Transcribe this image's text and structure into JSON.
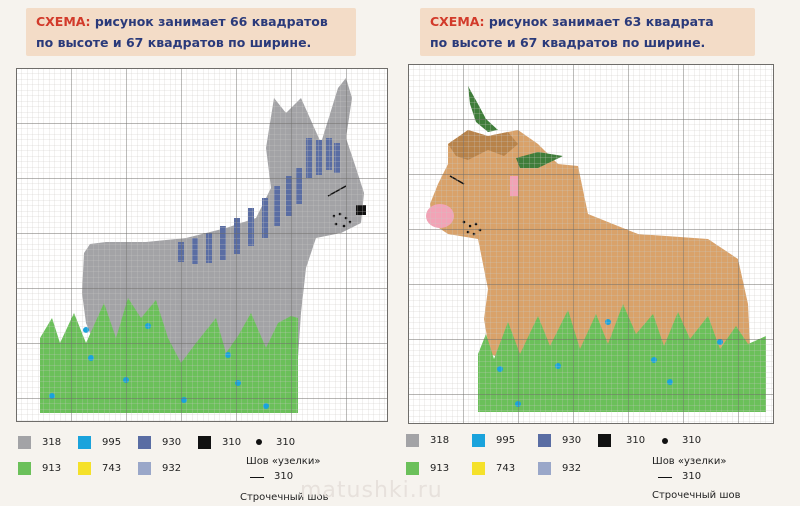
{
  "left": {
    "header": {
      "label": "СХЕМА:",
      "line1": " рисунок занимает 66 квадратов",
      "line2": "по высоте и 67 квадратов по ширине."
    },
    "legend": {
      "codes": [
        "318",
        "995",
        "930",
        "310",
        "310",
        "913",
        "743",
        "932"
      ],
      "french_knot_label": "Шов «узелки»",
      "backstitch_code": "310",
      "backstitch_label": "Строчечный шов"
    }
  },
  "right": {
    "header": {
      "label": "СХЕМА:",
      "line1": " рисунок занимает 63 квадрата",
      "line2": "по высоте и 67 квадратов по ширине."
    },
    "legend": {
      "codes": [
        "318",
        "995",
        "930",
        "310",
        "310",
        "913",
        "743",
        "932"
      ],
      "french_knot_label": "Шов «узелки»",
      "backstitch_code": "310",
      "backstitch_label": "Строчечный шов"
    }
  },
  "watermark": "matushki.ru",
  "colors": {
    "c318": "#a3a3a6",
    "c995": "#1aa3dc",
    "c930": "#5a6da3",
    "c310": "#111111",
    "c913": "#6bc05a",
    "c743": "#f5e12a",
    "c932": "#9aa7c9",
    "tan": "#d9a26a",
    "pink": "#f2a3b6",
    "leaf": "#3f7d3a"
  }
}
